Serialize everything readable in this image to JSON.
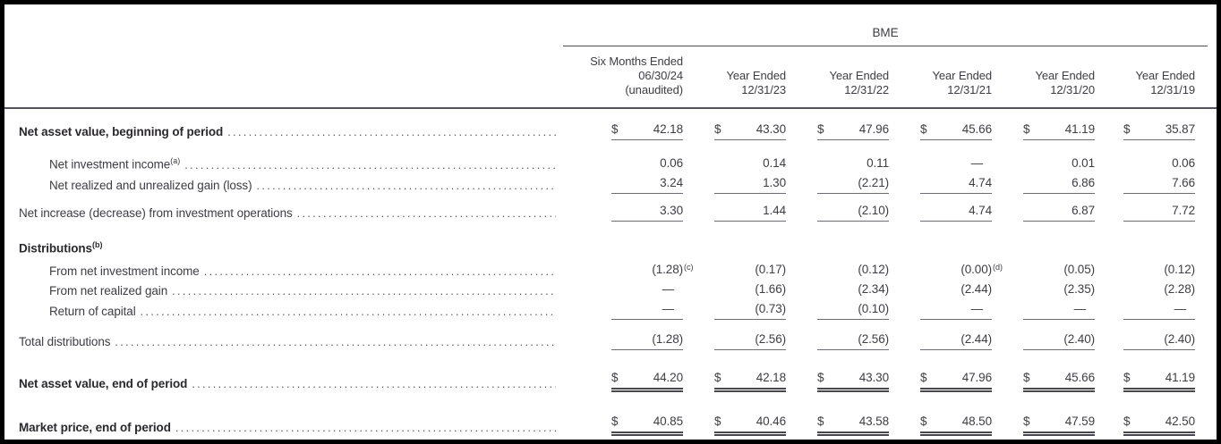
{
  "document": {
    "group_header": "BME",
    "columns": [
      {
        "lines": [
          "Six Months Ended",
          "06/30/24",
          "(unaudited)"
        ]
      },
      {
        "lines": [
          "Year Ended",
          "12/31/23"
        ]
      },
      {
        "lines": [
          "Year Ended",
          "12/31/22"
        ]
      },
      {
        "lines": [
          "Year Ended",
          "12/31/21"
        ]
      },
      {
        "lines": [
          "Year Ended",
          "12/31/20"
        ]
      },
      {
        "lines": [
          "Year Ended",
          "12/31/19"
        ]
      }
    ],
    "rows": [
      {
        "label": "Net asset value, beginning of period",
        "bold": true,
        "indent": 0,
        "leader": true,
        "dollar": true,
        "underline": "single",
        "values": [
          "42.18",
          "43.30",
          "47.96",
          "45.66",
          "41.19",
          "35.87"
        ]
      },
      {
        "label": "Net investment income",
        "label_sup": "(a)",
        "bold": false,
        "indent": 1,
        "leader": true,
        "dollar": false,
        "underline": "none",
        "values": [
          "0.06",
          "0.14",
          "0.11",
          "—",
          "0.01",
          "0.06"
        ]
      },
      {
        "label": "Net realized and unrealized gain (loss)",
        "bold": false,
        "indent": 1,
        "leader": true,
        "dollar": false,
        "underline": "single",
        "values": [
          "3.24",
          "1.30",
          "(2.21)",
          "4.74",
          "6.86",
          "7.66"
        ]
      },
      {
        "label": "Net increase (decrease) from investment operations",
        "bold": false,
        "indent": 0,
        "leader": true,
        "dollar": false,
        "underline": "single",
        "values": [
          "3.30",
          "1.44",
          "(2.10)",
          "4.74",
          "6.87",
          "7.72"
        ]
      },
      {
        "label": "Distributions",
        "label_sup": "(b)",
        "bold": true,
        "indent": 0,
        "leader": false,
        "dollar": false,
        "underline": "none",
        "values": null
      },
      {
        "label": "From net investment income",
        "bold": false,
        "indent": 1,
        "leader": true,
        "dollar": false,
        "underline": "none",
        "values": [
          "(1.28)",
          "(0.17)",
          "(0.12)",
          "(0.00)",
          "(0.05)",
          "(0.12)"
        ],
        "value_sups": {
          "0": "(c)",
          "3": "(d)"
        }
      },
      {
        "label": "From net realized gain",
        "bold": false,
        "indent": 1,
        "leader": true,
        "dollar": false,
        "underline": "none",
        "values": [
          "—",
          "(1.66)",
          "(2.34)",
          "(2.44)",
          "(2.35)",
          "(2.28)"
        ]
      },
      {
        "label": "Return of capital",
        "bold": false,
        "indent": 1,
        "leader": true,
        "dollar": false,
        "underline": "single",
        "values": [
          "—",
          "(0.73)",
          "(0.10)",
          "—",
          "—",
          "—"
        ]
      },
      {
        "label": "Total distributions",
        "bold": false,
        "indent": 0,
        "leader": true,
        "dollar": false,
        "underline": "single",
        "values": [
          "(1.28)",
          "(2.56)",
          "(2.56)",
          "(2.44)",
          "(2.40)",
          "(2.40)"
        ]
      },
      {
        "label": "Net asset value, end of period",
        "bold": true,
        "indent": 0,
        "leader": true,
        "dollar": true,
        "underline": "double",
        "values": [
          "44.20",
          "42.18",
          "43.30",
          "47.96",
          "45.66",
          "41.19"
        ]
      },
      {
        "label": "Market price, end of period",
        "bold": true,
        "indent": 0,
        "leader": true,
        "dollar": true,
        "underline": "double",
        "values": [
          "40.85",
          "40.46",
          "43.58",
          "48.50",
          "47.59",
          "42.50"
        ]
      }
    ],
    "colors": {
      "text": "#3d3d43",
      "bold_text": "#2a282c",
      "rule": "#53535a",
      "cell_underline": "#6e6e75"
    }
  }
}
